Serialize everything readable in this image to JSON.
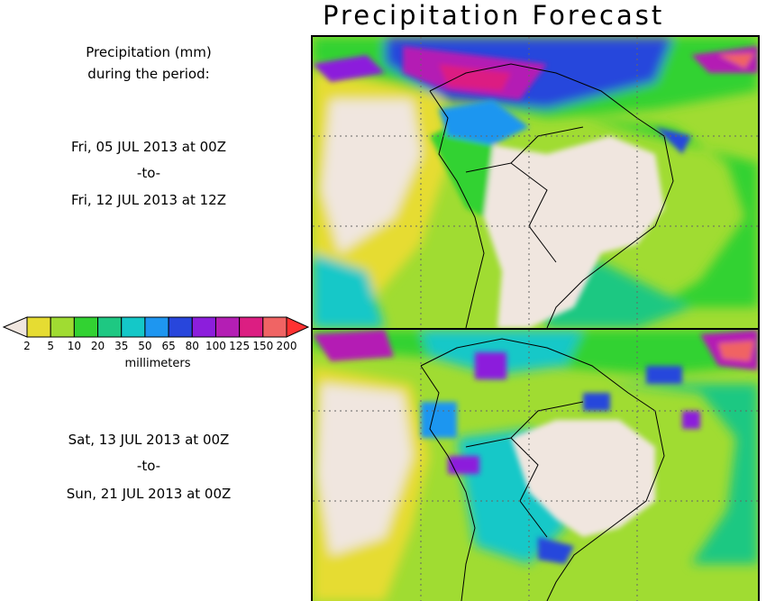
{
  "title": "Precipitation Forecast",
  "period_heading": [
    "Precipitation (mm)",
    "during the period:"
  ],
  "period1": {
    "start": "Fri, 05 JUL 2013 at 00Z",
    "sep": "-to-",
    "end": "Fri, 12 JUL 2013 at 12Z"
  },
  "period2": {
    "start": "Sat, 13 JUL 2013 at 00Z",
    "sep": "-to-",
    "end": "Sun, 21 JUL 2013 at 00Z"
  },
  "legend": {
    "unit_label": "millimeters",
    "ticks": [
      "2",
      "5",
      "10",
      "20",
      "35",
      "50",
      "65",
      "80",
      "100",
      "125",
      "150",
      "200"
    ],
    "colors": [
      "#f0e6df",
      "#e6dc32",
      "#a0dc32",
      "#32d232",
      "#1ec882",
      "#14c8c8",
      "#1e96f0",
      "#2846dc",
      "#8c1edc",
      "#b41eb4",
      "#dc1e82",
      "#f06464",
      "#ff3232"
    ]
  },
  "colors": {
    "land_dry": "#f0e6df",
    "ocean_light": "#e6dc32",
    "ocean_wet": "#a0dc32",
    "border": "#000000"
  }
}
